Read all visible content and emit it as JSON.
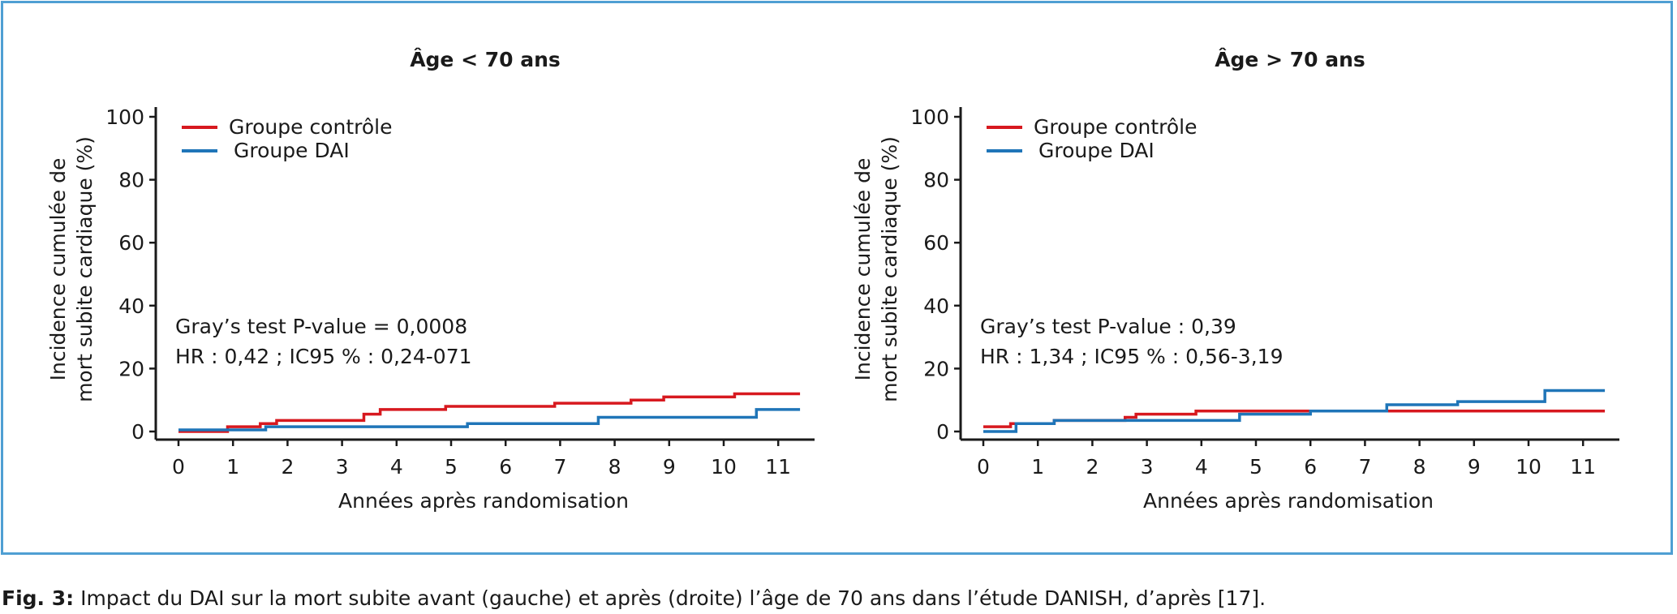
{
  "colors": {
    "frame": "#4f9fd3",
    "control": "#d7191f",
    "dai": "#1f75b8"
  },
  "caption": {
    "label": "Fig. 3:",
    "text": " Impact du DAI sur la mort subite avant (gauche) et après (droite) l’âge de 70 ans dans l’étude DANISH, d’après [17]."
  },
  "chart_data": [
    {
      "type": "line",
      "step": true,
      "title": "Âge < 70 ans",
      "xlabel": "Années après randomisation",
      "ylabel": [
        "Incidence cumulée de",
        "mort subite cardiaque (%)"
      ],
      "xlim": [
        -0.3,
        11.4
      ],
      "ylim": [
        0,
        100
      ],
      "xticks": [
        0,
        1,
        2,
        3,
        4,
        5,
        6,
        7,
        8,
        9,
        10,
        11
      ],
      "yticks": [
        0,
        20,
        40,
        60,
        80,
        100
      ],
      "grid": false,
      "legend": "top-left",
      "annotations": [
        "Gray’s test P-value = 0,0008",
        "HR : 0,42 ; IC95 % : 0,24-071"
      ],
      "series": [
        {
          "name": "Groupe contrôle",
          "color": "#d7191f",
          "x": [
            0,
            0.9,
            1.5,
            1.8,
            3.4,
            3.7,
            4.9,
            6.9,
            8.3,
            8.9,
            10.2,
            11.4
          ],
          "y": [
            0,
            1.5,
            2.5,
            3.5,
            5.5,
            7,
            8,
            9,
            10,
            11,
            12,
            12
          ]
        },
        {
          "name": "Groupe DAI",
          "color": "#1f75b8",
          "x": [
            0,
            1.6,
            5.3,
            7.7,
            10.6,
            11.4
          ],
          "y": [
            0.5,
            1.5,
            2.5,
            4.5,
            7,
            7
          ]
        }
      ]
    },
    {
      "type": "line",
      "step": true,
      "title": "Âge > 70 ans",
      "xlabel": "Années après randomisation",
      "ylabel": [
        "Incidence cumulée de",
        "mort subite cardiaque (%)"
      ],
      "xlim": [
        -0.3,
        11.4
      ],
      "ylim": [
        0,
        100
      ],
      "xticks": [
        0,
        1,
        2,
        3,
        4,
        5,
        6,
        7,
        8,
        9,
        10,
        11
      ],
      "yticks": [
        0,
        20,
        40,
        60,
        80,
        100
      ],
      "grid": false,
      "legend": "top-left",
      "annotations": [
        "Gray’s test P-value : 0,39",
        "HR : 1,34 ; IC95 % : 0,56-3,19"
      ],
      "series": [
        {
          "name": "Groupe contrôle",
          "color": "#d7191f",
          "x": [
            0,
            0.5,
            1.3,
            2.6,
            2.8,
            3.9,
            7.4,
            11.4
          ],
          "y": [
            1.5,
            2.5,
            3.5,
            4.5,
            5.5,
            6.5,
            6.5,
            6.5
          ]
        },
        {
          "name": "Groupe DAI",
          "color": "#1f75b8",
          "x": [
            0,
            0.6,
            1.3,
            4.7,
            6.0,
            7.4,
            8.7,
            10.3,
            11.4
          ],
          "y": [
            0,
            2.5,
            3.5,
            5.5,
            6.5,
            8.5,
            9.5,
            13,
            13
          ]
        }
      ]
    }
  ]
}
